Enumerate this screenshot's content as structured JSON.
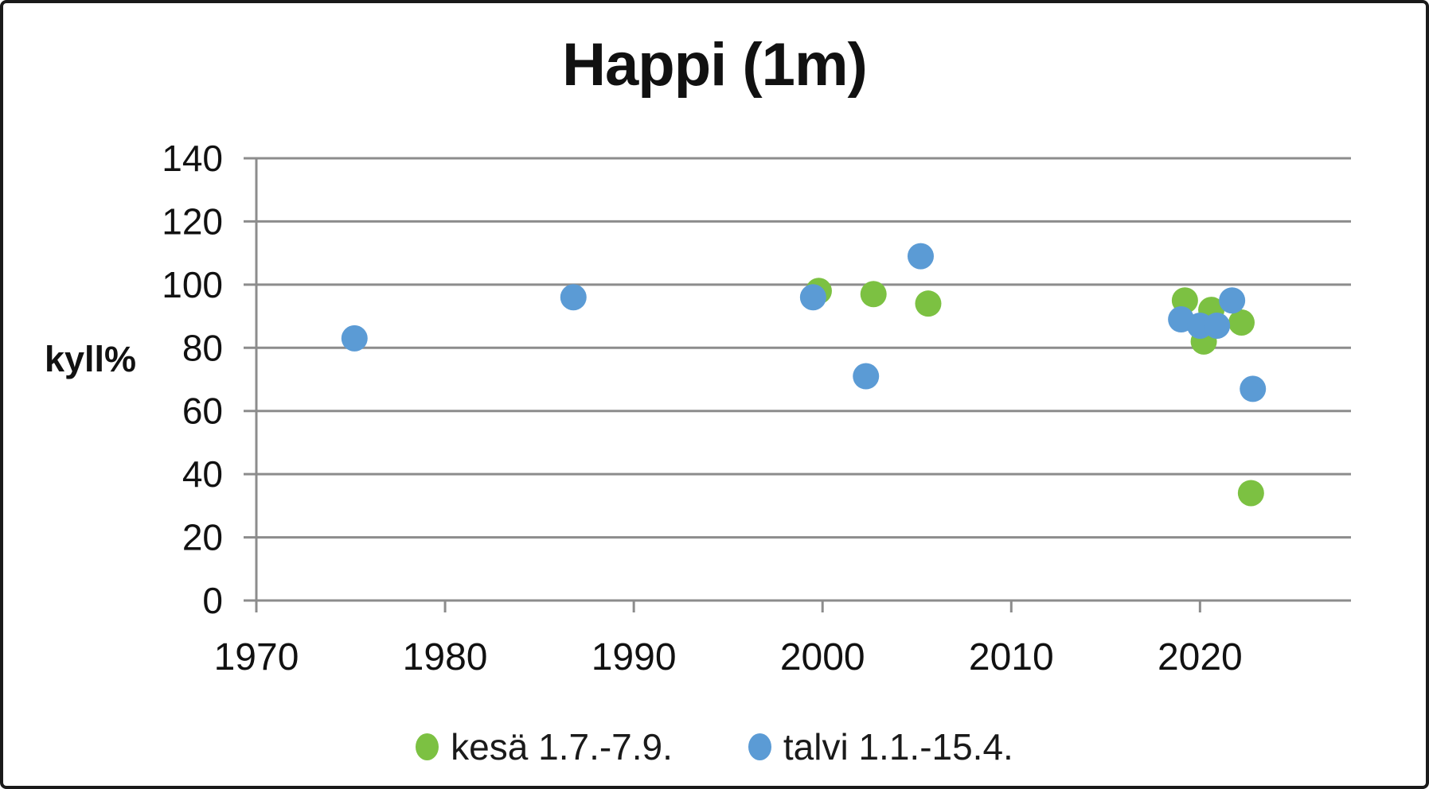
{
  "window": {
    "background": "#ffffff",
    "border_color": "#1a1a1a"
  },
  "chart_data": {
    "type": "scatter",
    "title": "Happi (1m)",
    "xlabel": "",
    "ylabel": "kyll%",
    "xlim": [
      1970,
      2028
    ],
    "ylim": [
      0,
      140
    ],
    "x_ticks": [
      1970,
      1980,
      1990,
      2000,
      2010,
      2020
    ],
    "y_ticks": [
      0,
      20,
      40,
      60,
      80,
      100,
      120,
      140
    ],
    "grid": "horizontal-major-gridlines",
    "gridline_color": "#8C8C8C",
    "tick_label_color": "#111111",
    "legend_position": "bottom-center",
    "series": [
      {
        "name": "kesä 1.7.-7.9.",
        "color": "#7CC142",
        "points": [
          {
            "x": 1999.8,
            "y": 98
          },
          {
            "x": 2002.7,
            "y": 97
          },
          {
            "x": 2005.6,
            "y": 94
          },
          {
            "x": 2019.2,
            "y": 95
          },
          {
            "x": 2020.2,
            "y": 82
          },
          {
            "x": 2020.6,
            "y": 92
          },
          {
            "x": 2022.2,
            "y": 88
          },
          {
            "x": 2022.7,
            "y": 34
          }
        ]
      },
      {
        "name": "talvi 1.1.-15.4.",
        "color": "#5B9BD5",
        "points": [
          {
            "x": 1975.2,
            "y": 83
          },
          {
            "x": 1986.8,
            "y": 96
          },
          {
            "x": 1999.5,
            "y": 96
          },
          {
            "x": 2002.3,
            "y": 71
          },
          {
            "x": 2005.2,
            "y": 109
          },
          {
            "x": 2019.0,
            "y": 89
          },
          {
            "x": 2020.0,
            "y": 87
          },
          {
            "x": 2020.9,
            "y": 87
          },
          {
            "x": 2021.7,
            "y": 95
          },
          {
            "x": 2022.8,
            "y": 67
          }
        ]
      }
    ]
  }
}
